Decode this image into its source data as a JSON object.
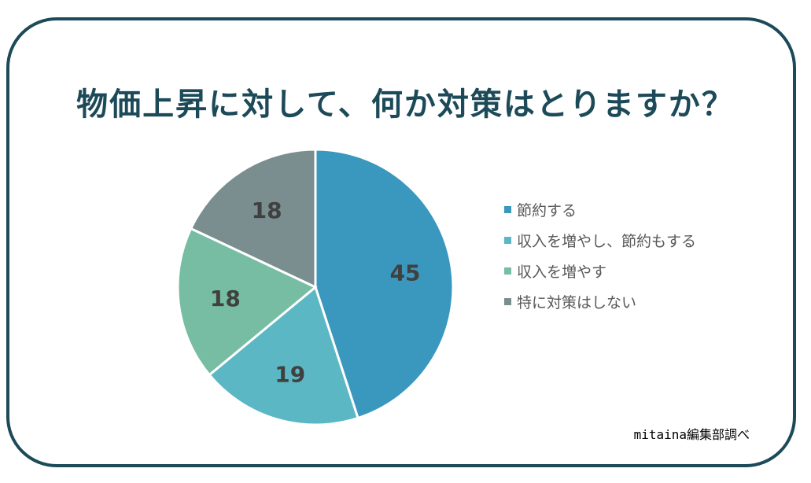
{
  "title": "物価上昇に対して、何か対策はとりますか？",
  "source": "mitaina編集部調べ",
  "chart_data": {
    "type": "pie",
    "categories": [
      "節約する",
      "収入を増やし、節約もする",
      "収入を増やす",
      "特に対策はしない"
    ],
    "values": [
      45,
      19,
      18,
      18
    ],
    "colors": [
      "#3a97bd",
      "#5cb7c4",
      "#76bda4",
      "#7a8d8f"
    ],
    "legend_position": "right",
    "data_labels": [
      "45",
      "19",
      "18",
      "18"
    ],
    "start_angle": "top, clockwise"
  }
}
